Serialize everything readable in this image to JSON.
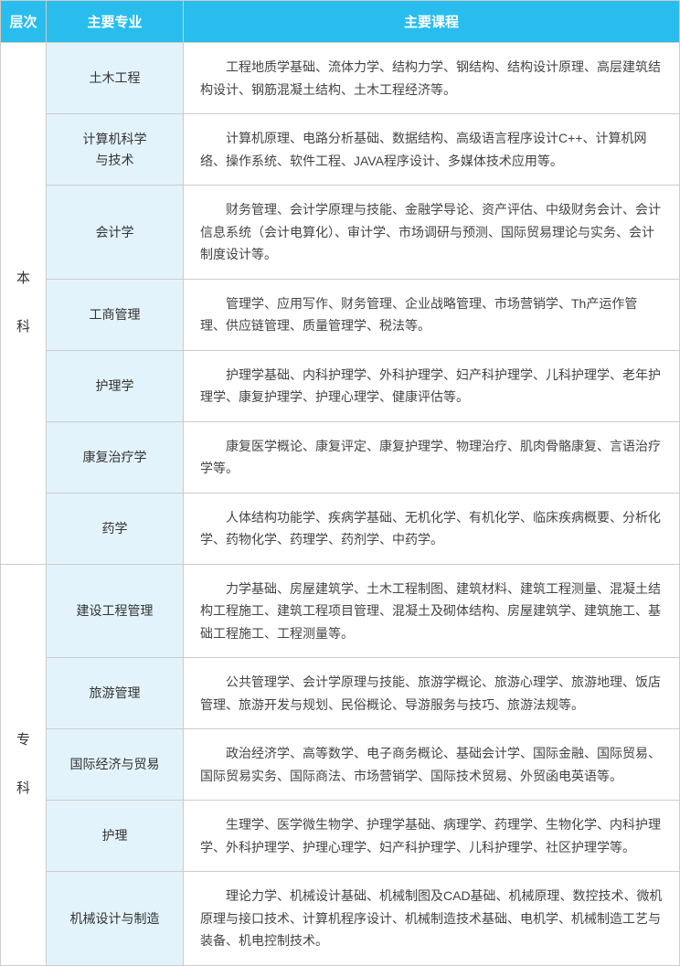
{
  "headers": {
    "level": "层次",
    "major": "主要专业",
    "course": "主要课程"
  },
  "sections": [
    {
      "level_chars": [
        "本",
        "科"
      ],
      "rows": [
        {
          "major": "土木工程",
          "course": "工程地质学基础、流体力学、结构力学、钢结构、结构设计原理、高层建筑结构设计、钢筋混凝土结构、土木工程经济等。"
        },
        {
          "major": "计算机科学与技术",
          "course": "计算机原理、电路分析基础、数据结构、高级语言程序设计C++、计算机网络、操作系统、软件工程、JAVA程序设计、多媒体技术应用等。"
        },
        {
          "major": "会计学",
          "course": "财务管理、会计学原理与技能、金融学导论、资产评估、中级财务会计、会计信息系统（会计电算化）、审计学、市场调研与预测、国际贸易理论与实务、会计制度设计等。"
        },
        {
          "major": "工商管理",
          "course": "管理学、应用写作、财务管理、企业战略管理、市场营销学、Th产运作管理、供应链管理、质量管理学、税法等。"
        },
        {
          "major": "护理学",
          "course": "护理学基础、内科护理学、外科护理学、妇产科护理学、儿科护理学、老年护理学、康复护理学、护理心理学、健康评估等。"
        },
        {
          "major": "康复治疗学",
          "course": "康复医学概论、康复评定、康复护理学、物理治疗、肌肉骨骼康复、言语治疗学等。"
        },
        {
          "major": "药学",
          "course": "人体结构功能学、疾病学基础、无机化学、有机化学、临床疾病概要、分析化学、药物化学、药理学、药剂学、中药学。"
        }
      ]
    },
    {
      "level_chars": [
        "专",
        "科"
      ],
      "rows": [
        {
          "major": "建设工程管理",
          "course": "力学基础、房屋建筑学、土木工程制图、建筑材料、建筑工程测量、混凝土结构工程施工、建筑工程项目管理、混凝土及砌体结构、房屋建筑学、建筑施工、基础工程施工、工程测量等。"
        },
        {
          "major": "旅游管理",
          "course": "公共管理学、会计学原理与技能、旅游学概论、旅游心理学、旅游地理、饭店管理、旅游开发与规划、民俗概论、导游服务与技巧、旅游法规等。"
        },
        {
          "major": "国际经济与贸易",
          "course": "政治经济学、高等数学、电子商务概论、基础会计学、国际金融、国际贸易、国际贸易实务、国际商法、市场营销学、国际技术贸易、外贸函电英语等。"
        },
        {
          "major": "护理",
          "course": "生理学、医学微生物学、护理学基础、病理学、药理学、生物化学、内科护理学、外科护理学、护理心理学、妇产科护理学、儿科护理学、社区护理学等。"
        },
        {
          "major": "机械设计与制造",
          "course": "理论力学、机械设计基础、机械制图及CAD基础、机械原理、数控技术、微机原理与接口技术、计算机程序设计、机械制造技术基础、电机学、机械制造工艺与装备、机电控制技术。"
        }
      ]
    }
  ],
  "colors": {
    "header_bg": "#29bdee",
    "header_text": "#ffffff",
    "major_bg": "#e3f3fb",
    "border": "#cccccc",
    "text": "#333333"
  }
}
